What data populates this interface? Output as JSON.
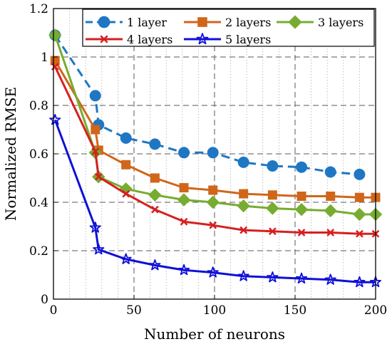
{
  "chart_data": {
    "type": "line",
    "xlabel": "Number of neurons",
    "ylabel": "Normalized RMSE",
    "xlim": [
      0,
      200
    ],
    "ylim": [
      0,
      1.2
    ],
    "xticks": [
      "0",
      "50",
      "100",
      "150",
      "200"
    ],
    "yticks": [
      "0",
      "0.2",
      "0.4",
      "0.6",
      "0.8",
      "1",
      "1.2"
    ],
    "grid": "on (dashed major, dotted minor)",
    "legend_position": "top",
    "series": [
      {
        "name": "1 layer",
        "color": "#1f77c4",
        "line_style": "dashed",
        "marker": "circle",
        "x": [
          1,
          26,
          28,
          45,
          63,
          81,
          99,
          118,
          136,
          154,
          172,
          190
        ],
        "y": [
          1.09,
          0.84,
          0.72,
          0.665,
          0.64,
          0.605,
          0.605,
          0.565,
          0.55,
          0.545,
          0.525,
          0.515
        ]
      },
      {
        "name": "2 layers",
        "color": "#d0661a",
        "line_style": "solid",
        "marker": "square",
        "x": [
          1,
          26,
          28,
          45,
          63,
          81,
          99,
          118,
          136,
          154,
          172,
          190,
          200
        ],
        "y": [
          0.985,
          0.7,
          0.615,
          0.555,
          0.5,
          0.46,
          0.45,
          0.435,
          0.43,
          0.425,
          0.425,
          0.42,
          0.42
        ]
      },
      {
        "name": "3 layers",
        "color": "#77ac30",
        "line_style": "solid",
        "marker": "diamond",
        "x": [
          1,
          26,
          28,
          45,
          63,
          81,
          99,
          118,
          136,
          154,
          172,
          190,
          200
        ],
        "y": [
          1.09,
          0.605,
          0.505,
          0.455,
          0.43,
          0.41,
          0.4,
          0.385,
          0.375,
          0.37,
          0.365,
          0.35,
          0.35
        ]
      },
      {
        "name": "4 layers",
        "color": "#d62020",
        "line_style": "solid",
        "marker": "x",
        "x": [
          1,
          26,
          28,
          45,
          63,
          81,
          99,
          118,
          136,
          154,
          172,
          190,
          200
        ],
        "y": [
          0.96,
          0.61,
          0.505,
          0.435,
          0.37,
          0.32,
          0.305,
          0.285,
          0.28,
          0.275,
          0.275,
          0.27,
          0.27
        ]
      },
      {
        "name": "5 layers",
        "color": "#1010d8",
        "line_style": "solid",
        "marker": "star",
        "x": [
          1,
          26,
          28,
          45,
          63,
          81,
          99,
          118,
          136,
          154,
          172,
          190,
          200
        ],
        "y": [
          0.74,
          0.295,
          0.205,
          0.165,
          0.14,
          0.12,
          0.11,
          0.095,
          0.09,
          0.085,
          0.08,
          0.07,
          0.07
        ]
      }
    ]
  }
}
